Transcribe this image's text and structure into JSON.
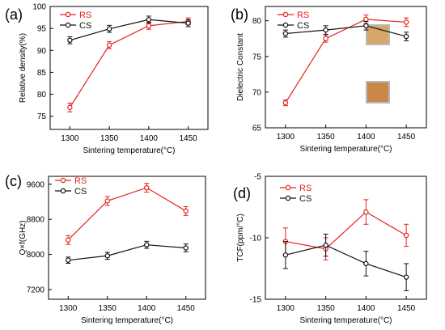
{
  "series_style": {
    "RS": {
      "color": "#e3201b",
      "marker": "circle-open"
    },
    "CS": {
      "color": "#111111",
      "marker": "circle-open"
    }
  },
  "inset_colors": {
    "upper": "#d8a56a",
    "lower": "#c9874a",
    "frame": "#b9b9b9"
  },
  "chart_data": [
    {
      "panel": "(a)",
      "type": "line",
      "x": [
        1300,
        1350,
        1400,
        1450
      ],
      "xlabel": "Sintering temperature(°C)",
      "ylabel": "Relative density(%)",
      "xticks": [
        1300,
        1350,
        1400,
        1450
      ],
      "yticks": [
        75,
        80,
        85,
        90,
        95,
        100
      ],
      "xlim": [
        1275,
        1475
      ],
      "ylim": [
        72,
        100
      ],
      "legend_position": "top-left",
      "series": [
        {
          "name": "RS",
          "values": [
            77.0,
            91.2,
            95.6,
            96.6
          ],
          "errors": [
            1.0,
            0.8,
            0.8,
            0.8
          ]
        },
        {
          "name": "CS",
          "values": [
            92.3,
            94.9,
            97.0,
            96.2
          ],
          "errors": [
            0.8,
            0.8,
            0.8,
            0.8
          ]
        }
      ]
    },
    {
      "panel": "(b)",
      "type": "line",
      "x": [
        1300,
        1350,
        1400,
        1450
      ],
      "xlabel": "Sintering temperature(°C)",
      "ylabel": "Dielectric Constant",
      "xticks": [
        1300,
        1350,
        1400,
        1450
      ],
      "yticks": [
        65,
        70,
        75,
        80
      ],
      "xlim": [
        1275,
        1475
      ],
      "ylim": [
        65,
        82
      ],
      "legend_position": "top-left",
      "series": [
        {
          "name": "RS",
          "values": [
            68.5,
            77.5,
            80.2,
            79.8
          ],
          "errors": [
            0.4,
            0.5,
            0.6,
            0.6
          ]
        },
        {
          "name": "CS",
          "values": [
            78.2,
            78.7,
            79.3,
            77.8
          ],
          "errors": [
            0.5,
            0.6,
            0.6,
            0.6
          ]
        }
      ]
    },
    {
      "panel": "(c)",
      "type": "line",
      "x": [
        1300,
        1350,
        1400,
        1450
      ],
      "xlabel": "Sintering temperature(°C)",
      "ylabel": "Q×f(GHz)",
      "xticks": [
        1300,
        1350,
        1400,
        1450
      ],
      "yticks": [
        7200,
        8000,
        8800,
        9600
      ],
      "xlim": [
        1275,
        1475
      ],
      "ylim": [
        6980,
        9780
      ],
      "legend_position": "top-left",
      "series": [
        {
          "name": "RS",
          "values": [
            8330,
            9220,
            9520,
            8990
          ],
          "errors": [
            100,
            100,
            100,
            100
          ]
        },
        {
          "name": "CS",
          "values": [
            7870,
            7970,
            8220,
            8150
          ],
          "errors": [
            70,
            80,
            80,
            90
          ]
        }
      ]
    },
    {
      "panel": "(d)",
      "type": "line",
      "x": [
        1300,
        1350,
        1400,
        1450
      ],
      "xlabel": "Sintering temperature(°C)",
      "ylabel": "TCF(ppm/°C)",
      "xticks": [
        1300,
        1350,
        1400,
        1450
      ],
      "yticks": [
        -15,
        -10,
        -5
      ],
      "xlim": [
        1275,
        1475
      ],
      "ylim": [
        -15,
        -5
      ],
      "legend_position": "top-left",
      "series": [
        {
          "name": "RS",
          "values": [
            -10.3,
            -10.9,
            -7.9,
            -9.8
          ],
          "errors": [
            1.1,
            0.9,
            1.0,
            0.9
          ]
        },
        {
          "name": "CS",
          "values": [
            -11.4,
            -10.6,
            -12.1,
            -13.2
          ],
          "errors": [
            1.1,
            0.9,
            1.0,
            1.1
          ]
        }
      ]
    }
  ]
}
